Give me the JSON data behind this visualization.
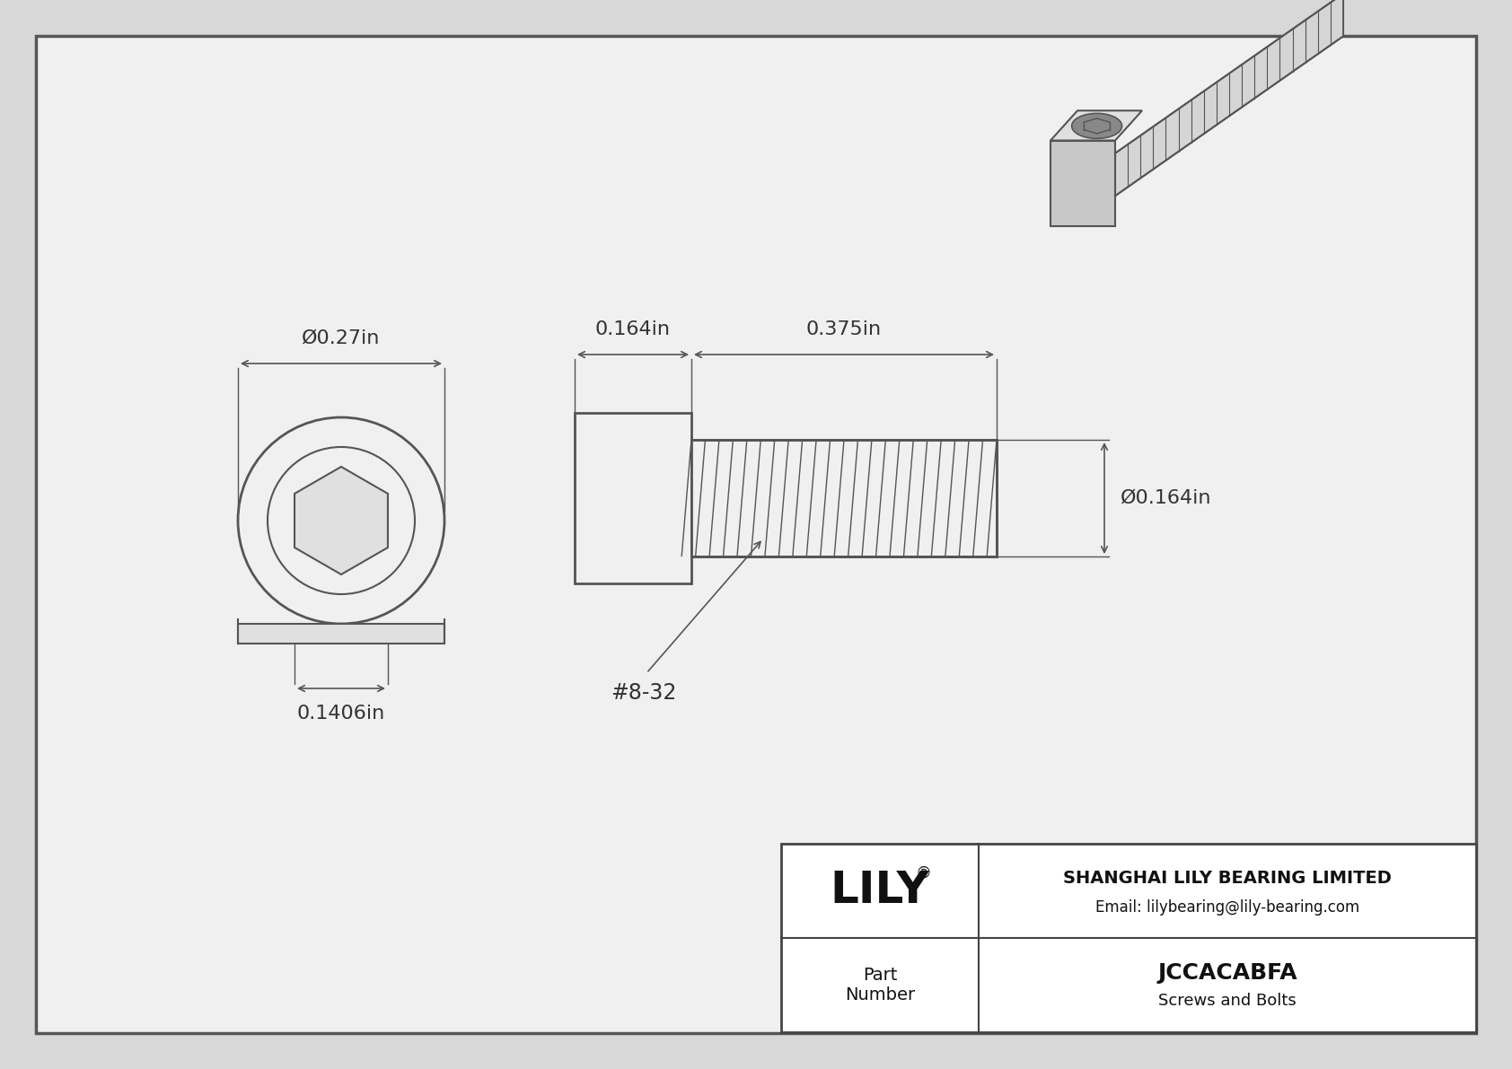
{
  "bg_color": "#d8d8d8",
  "inner_bg": "#f0f0f0",
  "border_color": "#555555",
  "drawing_color": "#555555",
  "dim_color": "#555555",
  "text_color": "#333333",
  "title": "JCCACABFA",
  "subtitle": "Screws and Bolts",
  "company": "SHANGHAI LILY BEARING LIMITED",
  "email": "Email: lilybearing@lily-bearing.com",
  "part_label": "Part\nNumber",
  "logo": "LILY",
  "dim_head_length": "0.164in",
  "dim_thread_length": "0.375in",
  "dim_thread_dia": "Ø0.164in",
  "dim_front_dia": "Ø0.27in",
  "dim_drive_dia": "0.1406in",
  "thread_annotation": "#8-32"
}
